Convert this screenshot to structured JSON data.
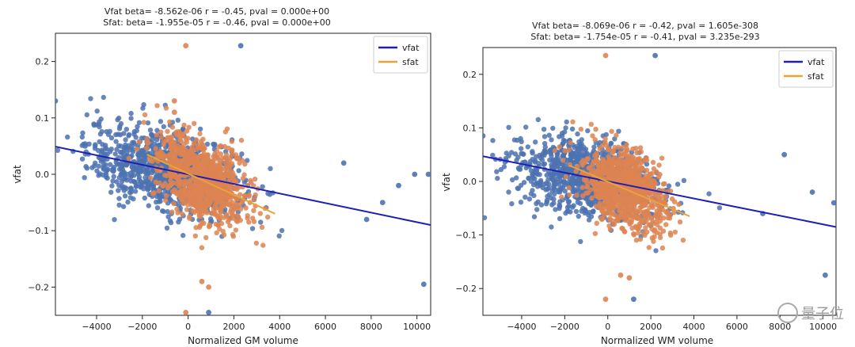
{
  "chart_data": [
    {
      "type": "scatter",
      "title": "Vfat beta= -8.562e-06 r = -0.45, pval = 0.000e+00",
      "subtitle": "Sfat: beta= -1.955e-05 r = -0.46, pval = 0.000e+00",
      "xlabel": "Normalized GM volume",
      "ylabel": "vfat",
      "xlim": [
        -5800,
        10600
      ],
      "ylim": [
        -0.25,
        0.25
      ],
      "xticks": [
        -4000,
        -2000,
        0,
        2000,
        4000,
        6000,
        8000,
        10000
      ],
      "xtick_labels": [
        "−4000",
        "−2000",
        "0",
        "2000",
        "4000",
        "6000",
        "8000",
        "10000"
      ],
      "yticks": [
        -0.2,
        -0.1,
        0.0,
        0.1,
        0.2
      ],
      "ytick_labels": [
        "−0.2",
        "−0.1",
        "0.0",
        "0.1",
        "0.2"
      ],
      "legend_position": "top-right",
      "series": [
        {
          "name": "vfat",
          "color": "#4c72b0",
          "line_color": "#1f1fb4",
          "line": {
            "x": [
              -5800,
              10600
            ],
            "y": [
              0.049,
              -0.09
            ]
          },
          "cluster": {
            "x_center": -1000,
            "x_sd": 1700,
            "y_center": 0.0,
            "y_sd": 0.04
          },
          "points": [
            [
              -5800,
              0.13
            ],
            [
              2300,
              0.228
            ],
            [
              10300,
              -0.195
            ],
            [
              900,
              -0.245
            ],
            [
              10500,
              0.0
            ],
            [
              9900,
              0.0
            ],
            [
              8500,
              -0.05
            ],
            [
              7800,
              -0.08
            ],
            [
              9200,
              -0.02
            ],
            [
              6800,
              0.02
            ],
            [
              -4500,
              0.05
            ]
          ]
        },
        {
          "name": "sfat",
          "color": "#dd8452",
          "line_color": "#e8a33a",
          "line": {
            "x": [
              -1800,
              3800
            ],
            "y": [
              0.035,
              -0.07
            ]
          },
          "cluster": {
            "x_center": 700,
            "x_sd": 1000,
            "y_center": -0.02,
            "y_sd": 0.04
          },
          "points": [
            [
              -100,
              0.228
            ],
            [
              -600,
              0.13
            ],
            [
              -100,
              -0.245
            ],
            [
              600,
              -0.19
            ],
            [
              900,
              -0.2
            ],
            [
              -600,
              0.11
            ]
          ]
        }
      ]
    },
    {
      "type": "scatter",
      "title": "Vfat beta= -8.069e-06 r = -0.42, pval = 1.605e-308",
      "subtitle": "Sfat: beta= -1.754e-05 r = -0.41, pval = 3.235e-293",
      "xlabel": "Normalized WM volume",
      "ylabel": "vfat",
      "xlim": [
        -5800,
        10600
      ],
      "ylim": [
        -0.25,
        0.25
      ],
      "xticks": [
        -4000,
        -2000,
        0,
        2000,
        4000,
        6000,
        8000,
        10000
      ],
      "xtick_labels": [
        "−4000",
        "−2000",
        "0",
        "2000",
        "4000",
        "6000",
        "8000",
        "10000"
      ],
      "yticks": [
        -0.2,
        -0.1,
        0.0,
        0.1,
        0.2
      ],
      "ytick_labels": [
        "−0.2",
        "−0.1",
        "0.0",
        "0.1",
        "0.2"
      ],
      "legend_position": "top-right",
      "series": [
        {
          "name": "vfat",
          "color": "#4c72b0",
          "line_color": "#1f1fb4",
          "line": {
            "x": [
              -5800,
              10600
            ],
            "y": [
              0.047,
              -0.085
            ]
          },
          "cluster": {
            "x_center": -1000,
            "x_sd": 1700,
            "y_center": 0.0,
            "y_sd": 0.04
          },
          "points": [
            [
              2200,
              0.235
            ],
            [
              10500,
              -0.04
            ],
            [
              10100,
              -0.175
            ],
            [
              1200,
              -0.22
            ],
            [
              -5800,
              0.085
            ],
            [
              9500,
              -0.02
            ],
            [
              8200,
              0.05
            ],
            [
              7200,
              -0.06
            ]
          ]
        },
        {
          "name": "sfat",
          "color": "#dd8452",
          "line_color": "#e8a33a",
          "line": {
            "x": [
              -1800,
              3800
            ],
            "y": [
              0.03,
              -0.065
            ]
          },
          "cluster": {
            "x_center": 700,
            "x_sd": 1000,
            "y_center": -0.02,
            "y_sd": 0.04
          },
          "points": [
            [
              -100,
              0.235
            ],
            [
              -100,
              -0.22
            ],
            [
              600,
              -0.175
            ],
            [
              1000,
              -0.18
            ]
          ]
        }
      ]
    }
  ],
  "watermark": "量子位"
}
